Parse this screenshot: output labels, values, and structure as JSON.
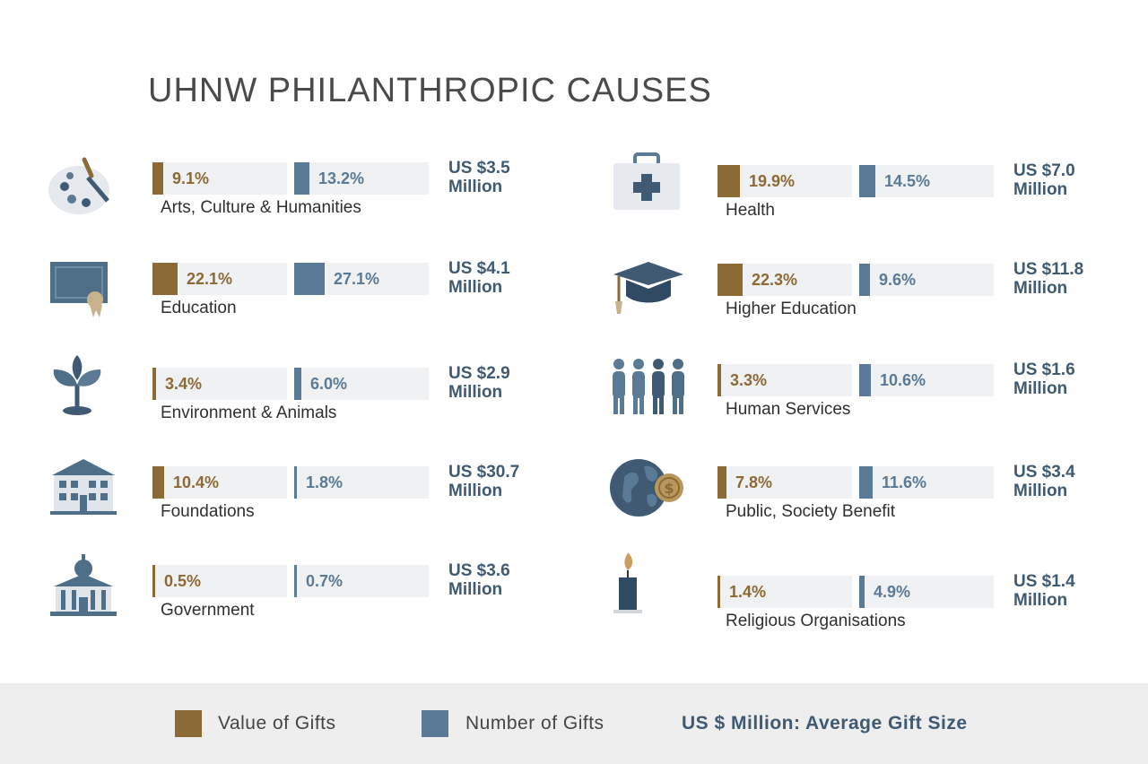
{
  "title": "UHNW PHILANTHROPIC CAUSES",
  "colors": {
    "value": "#8c6a35",
    "number": "#5a7a95",
    "avg": "#3f5a72",
    "track": "#f0f1f3"
  },
  "chart_data": {
    "type": "bar",
    "title": "UHNW PHILANTHROPIC CAUSES",
    "categories": [
      "Arts, Culture & Humanities",
      "Education",
      "Environment & Animals",
      "Foundations",
      "Government",
      "Health",
      "Higher Education",
      "Human Services",
      "Public, Society Benefit",
      "Religious Organisations"
    ],
    "series": [
      {
        "name": "Value of Gifts",
        "values": [
          9.1,
          22.1,
          3.4,
          10.4,
          0.5,
          19.9,
          22.3,
          3.3,
          7.8,
          1.4
        ],
        "labels": [
          "9.1%",
          "22.1%",
          "3.4%",
          "10.4%",
          "0.5%",
          "19.9%",
          "22.3%",
          "3.3%",
          "7.8%",
          "1.4%"
        ]
      },
      {
        "name": "Number of Gifts",
        "values": [
          13.2,
          27.1,
          6.0,
          1.8,
          0.7,
          14.5,
          9.6,
          10.6,
          11.6,
          4.9
        ],
        "labels": [
          "13.2%",
          "27.1%",
          "6.0%",
          "1.8%",
          "0.7%",
          "14.5%",
          "9.6%",
          "10.6%",
          "11.6%",
          "4.9%"
        ]
      },
      {
        "name": "US $ Million: Average Gift Size",
        "values": [
          3.5,
          4.1,
          2.9,
          30.7,
          3.6,
          7.0,
          11.8,
          1.6,
          3.4,
          1.4
        ],
        "labels": [
          [
            "US $3.5",
            "Million"
          ],
          [
            "US $4.1",
            "Million"
          ],
          [
            "US $2.9",
            "Million"
          ],
          [
            "US $30.7",
            "Million"
          ],
          [
            "US $3.6",
            "Million"
          ],
          [
            "US $7.0",
            "Million"
          ],
          [
            "US $11.8",
            "Million"
          ],
          [
            "US $1.6",
            "Million"
          ],
          [
            "US $3.4",
            "Million"
          ],
          [
            "US $1.4",
            "Million"
          ]
        ]
      }
    ],
    "icons": [
      "palette-icon",
      "certificate-icon",
      "plant-icon",
      "building-icon",
      "capitol-icon",
      "medical-kit-icon",
      "graduation-cap-icon",
      "people-icon",
      "globe-coin-icon",
      "candle-icon"
    ]
  },
  "legend": {
    "value_label": "Value of Gifts",
    "number_label": "Number of Gifts",
    "avg_label": "US $ Million: Average Gift Size"
  }
}
